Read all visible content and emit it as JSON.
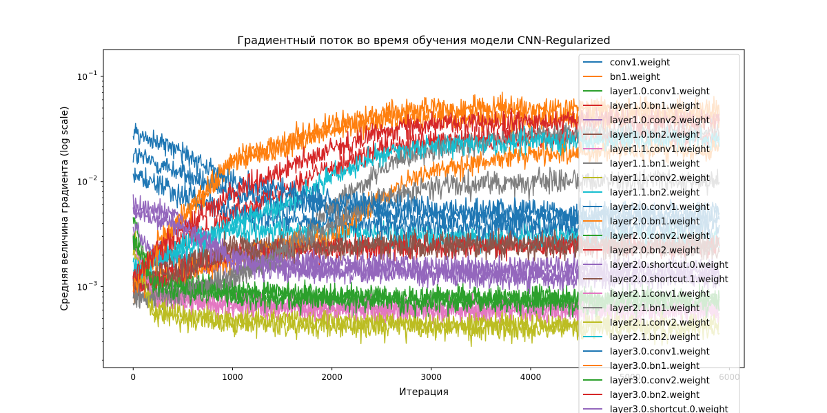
{
  "chart_data": {
    "type": "line",
    "title": "Градиентный поток во время обучения модели CNN-Regularized",
    "xlabel": "Итерация",
    "ylabel": "Средняя величина градиента (log scale)",
    "xlim": [
      -300,
      6150
    ],
    "ylim": [
      0.00017,
      0.18
    ],
    "y_scale": "log",
    "x_ticks": [
      0,
      1000,
      2000,
      3000,
      4000,
      5000,
      6000
    ],
    "x_tick_labels": [
      "0",
      "1000",
      "2000",
      "3000",
      "4000",
      "5000",
      "6000"
    ],
    "y_ticks": [
      0.001,
      0.01,
      0.1
    ],
    "y_tick_labels": [
      "10",
      "10",
      "10"
    ],
    "y_tick_exponents": [
      "−3",
      "−2",
      "−1"
    ],
    "x_max": 5900,
    "grid": false,
    "legend_position": "top-right",
    "series": [
      {
        "name": "conv1.weight",
        "color": "#1f77b4",
        "values": [
          [
            0,
            0.018
          ],
          [
            400,
            0.013
          ],
          [
            1000,
            0.0075
          ],
          [
            2000,
            0.0055
          ],
          [
            3000,
            0.0048
          ],
          [
            4000,
            0.0046
          ],
          [
            5000,
            0.0045
          ],
          [
            5900,
            0.0045
          ]
        ]
      },
      {
        "name": "bn1.weight",
        "color": "#ff7f0e",
        "values": [
          [
            0,
            0.0011
          ],
          [
            300,
            0.003
          ],
          [
            1000,
            0.015
          ],
          [
            2000,
            0.03
          ],
          [
            2500,
            0.038
          ],
          [
            3000,
            0.04
          ],
          [
            4000,
            0.04
          ],
          [
            5000,
            0.04
          ],
          [
            5900,
            0.04
          ]
        ]
      },
      {
        "name": "layer1.0.conv1.weight",
        "color": "#2ca02c",
        "values": [
          [
            0,
            0.004
          ],
          [
            200,
            0.0012
          ],
          [
            1000,
            0.0009
          ],
          [
            2000,
            0.0008
          ],
          [
            3000,
            0.00075
          ],
          [
            4000,
            0.00075
          ],
          [
            5000,
            0.00075
          ],
          [
            5900,
            0.00075
          ]
        ]
      },
      {
        "name": "layer1.0.bn1.weight",
        "color": "#d62728",
        "values": [
          [
            0,
            0.0013
          ],
          [
            300,
            0.002
          ],
          [
            1000,
            0.005
          ],
          [
            2000,
            0.014
          ],
          [
            2500,
            0.02
          ],
          [
            3000,
            0.024
          ],
          [
            4000,
            0.026
          ],
          [
            5000,
            0.027
          ],
          [
            5900,
            0.027
          ]
        ]
      },
      {
        "name": "layer1.0.conv2.weight",
        "color": "#9467bd",
        "values": [
          [
            0,
            0.004
          ],
          [
            200,
            0.002
          ],
          [
            1000,
            0.0015
          ],
          [
            2000,
            0.0014
          ],
          [
            3000,
            0.0014
          ],
          [
            4000,
            0.0013
          ],
          [
            5000,
            0.0013
          ],
          [
            5900,
            0.0013
          ]
        ]
      },
      {
        "name": "layer1.0.bn2.weight",
        "color": "#8c564b",
        "values": [
          [
            0,
            0.001
          ],
          [
            300,
            0.0015
          ],
          [
            1000,
            0.0025
          ],
          [
            2000,
            0.0025
          ],
          [
            3000,
            0.0025
          ],
          [
            4000,
            0.0024
          ],
          [
            5000,
            0.0024
          ],
          [
            5900,
            0.0024
          ]
        ]
      },
      {
        "name": "layer1.1.conv1.weight",
        "color": "#e377c2",
        "values": [
          [
            0,
            0.003
          ],
          [
            200,
            0.0009
          ],
          [
            1000,
            0.00065
          ],
          [
            2000,
            0.00065
          ],
          [
            3000,
            0.00062
          ],
          [
            4000,
            0.0006
          ],
          [
            5000,
            0.0006
          ],
          [
            5900,
            0.0006
          ]
        ]
      },
      {
        "name": "layer1.1.bn1.weight",
        "color": "#7f7f7f",
        "values": [
          [
            0,
            0.0008
          ],
          [
            300,
            0.0008
          ],
          [
            1000,
            0.0012
          ],
          [
            1500,
            0.002
          ],
          [
            2000,
            0.006
          ],
          [
            2500,
            0.013
          ],
          [
            3000,
            0.02
          ],
          [
            4000,
            0.028
          ],
          [
            5000,
            0.03
          ],
          [
            5900,
            0.03
          ]
        ]
      },
      {
        "name": "layer1.1.conv2.weight",
        "color": "#bcbd22",
        "values": [
          [
            0,
            0.003
          ],
          [
            200,
            0.0006
          ],
          [
            1000,
            0.0005
          ],
          [
            2000,
            0.00048
          ],
          [
            3000,
            0.00045
          ],
          [
            4000,
            0.00045
          ],
          [
            5000,
            0.00045
          ],
          [
            5900,
            0.00045
          ]
        ]
      },
      {
        "name": "layer1.1.bn2.weight",
        "color": "#17becf",
        "values": [
          [
            0,
            0.0015
          ],
          [
            300,
            0.0018
          ],
          [
            1000,
            0.0035
          ],
          [
            2000,
            0.0033
          ],
          [
            3000,
            0.003
          ],
          [
            4000,
            0.003
          ],
          [
            5000,
            0.003
          ],
          [
            5900,
            0.003
          ]
        ]
      },
      {
        "name": "layer2.0.conv1.weight",
        "color": "#1f77b4",
        "values": [
          [
            0,
            0.012
          ],
          [
            400,
            0.008
          ],
          [
            1000,
            0.005
          ],
          [
            2000,
            0.004
          ],
          [
            3000,
            0.0038
          ],
          [
            4000,
            0.0037
          ],
          [
            5000,
            0.0036
          ],
          [
            5900,
            0.0036
          ]
        ]
      },
      {
        "name": "layer2.0.bn1.weight",
        "color": "#ff7f0e",
        "values": [
          [
            0,
            0.001
          ],
          [
            300,
            0.0012
          ],
          [
            1000,
            0.0018
          ],
          [
            2000,
            0.003
          ],
          [
            2500,
            0.007
          ],
          [
            3000,
            0.013
          ],
          [
            4000,
            0.018
          ],
          [
            5000,
            0.02
          ],
          [
            5900,
            0.02
          ]
        ]
      },
      {
        "name": "layer2.0.conv2.weight",
        "color": "#2ca02c",
        "values": [
          [
            0,
            0.0025
          ],
          [
            200,
            0.0011
          ],
          [
            1000,
            0.0009
          ],
          [
            2000,
            0.0008
          ],
          [
            3000,
            0.00078
          ],
          [
            4000,
            0.00076
          ],
          [
            5000,
            0.00075
          ],
          [
            5900,
            0.00075
          ]
        ]
      },
      {
        "name": "layer2.0.bn2.weight",
        "color": "#d62728",
        "values": [
          [
            0,
            0.001
          ],
          [
            300,
            0.0012
          ],
          [
            1000,
            0.002
          ],
          [
            2000,
            0.0023
          ],
          [
            3000,
            0.0024
          ],
          [
            4000,
            0.0024
          ],
          [
            5000,
            0.0024
          ],
          [
            5900,
            0.0024
          ]
        ]
      },
      {
        "name": "layer2.0.shortcut.0.weight",
        "color": "#9467bd",
        "values": [
          [
            0,
            0.006
          ],
          [
            400,
            0.005
          ],
          [
            1000,
            0.002
          ],
          [
            2000,
            0.0017
          ],
          [
            3000,
            0.0016
          ],
          [
            4000,
            0.0015
          ],
          [
            5000,
            0.0015
          ],
          [
            5900,
            0.0015
          ]
        ]
      },
      {
        "name": "layer2.0.shortcut.1.weight",
        "color": "#8c564b",
        "values": [
          [
            0,
            0.001
          ],
          [
            300,
            0.0012
          ],
          [
            1000,
            0.0022
          ],
          [
            2000,
            0.0024
          ],
          [
            3000,
            0.0025
          ],
          [
            4000,
            0.0025
          ],
          [
            5000,
            0.0025
          ],
          [
            5900,
            0.0025
          ]
        ]
      },
      {
        "name": "layer2.1.conv1.weight",
        "color": "#e377c2",
        "values": [
          [
            0,
            0.0025
          ],
          [
            200,
            0.0008
          ],
          [
            1000,
            0.00065
          ],
          [
            2000,
            0.0006
          ],
          [
            3000,
            0.0006
          ],
          [
            4000,
            0.0006
          ],
          [
            5000,
            0.0006
          ],
          [
            5900,
            0.0006
          ]
        ]
      },
      {
        "name": "layer2.1.bn1.weight",
        "color": "#7f7f7f",
        "values": [
          [
            0,
            0.0008
          ],
          [
            300,
            0.0008
          ],
          [
            1000,
            0.0012
          ],
          [
            2000,
            0.004
          ],
          [
            2500,
            0.007
          ],
          [
            3000,
            0.009
          ],
          [
            4000,
            0.01
          ],
          [
            5000,
            0.01
          ],
          [
            5900,
            0.01
          ]
        ]
      },
      {
        "name": "layer2.1.conv2.weight",
        "color": "#bcbd22",
        "values": [
          [
            0,
            0.0025
          ],
          [
            200,
            0.00055
          ],
          [
            1000,
            0.00045
          ],
          [
            2000,
            0.00042
          ],
          [
            3000,
            0.0004
          ],
          [
            4000,
            0.0004
          ],
          [
            5000,
            0.0004
          ],
          [
            5900,
            0.0004
          ]
        ]
      },
      {
        "name": "layer2.1.bn2.weight",
        "color": "#17becf",
        "values": [
          [
            0,
            0.0015
          ],
          [
            300,
            0.002
          ],
          [
            1000,
            0.004
          ],
          [
            1500,
            0.006
          ],
          [
            2000,
            0.011
          ],
          [
            2500,
            0.018
          ],
          [
            3000,
            0.022
          ],
          [
            4000,
            0.024
          ],
          [
            5000,
            0.025
          ],
          [
            5900,
            0.025
          ]
        ]
      },
      {
        "name": "layer3.0.conv1.weight",
        "color": "#1f77b4",
        "values": [
          [
            0,
            0.03
          ],
          [
            400,
            0.022
          ],
          [
            1000,
            0.01
          ],
          [
            2000,
            0.0065
          ],
          [
            3000,
            0.0055
          ],
          [
            4000,
            0.0052
          ],
          [
            5000,
            0.005
          ],
          [
            5900,
            0.005
          ]
        ]
      },
      {
        "name": "layer3.0.bn1.weight",
        "color": "#ff7f0e",
        "values": [
          [
            0,
            0.001
          ],
          [
            300,
            0.0025
          ],
          [
            1000,
            0.016
          ],
          [
            2000,
            0.035
          ],
          [
            2500,
            0.045
          ],
          [
            3000,
            0.05
          ],
          [
            4000,
            0.05
          ],
          [
            5000,
            0.048
          ],
          [
            5900,
            0.048
          ]
        ]
      },
      {
        "name": "layer3.0.conv2.weight",
        "color": "#2ca02c",
        "values": [
          [
            0,
            0.003
          ],
          [
            200,
            0.001
          ],
          [
            1000,
            0.0008
          ],
          [
            2000,
            0.00075
          ],
          [
            3000,
            0.0007
          ],
          [
            4000,
            0.0007
          ],
          [
            5000,
            0.0007
          ],
          [
            5900,
            0.0007
          ]
        ]
      },
      {
        "name": "layer3.0.bn2.weight",
        "color": "#d62728",
        "values": [
          [
            0,
            0.0012
          ],
          [
            300,
            0.0025
          ],
          [
            1000,
            0.008
          ],
          [
            2000,
            0.02
          ],
          [
            2500,
            0.03
          ],
          [
            3000,
            0.035
          ],
          [
            4000,
            0.037
          ],
          [
            5000,
            0.038
          ],
          [
            5900,
            0.038
          ]
        ]
      },
      {
        "name": "layer3.0.shortcut.0.weight",
        "color": "#9467bd",
        "values": [
          [
            0,
            0.005
          ],
          [
            400,
            0.004
          ],
          [
            1000,
            0.0018
          ],
          [
            2000,
            0.0014
          ],
          [
            3000,
            0.0013
          ],
          [
            4000,
            0.0012
          ],
          [
            5000,
            0.0012
          ],
          [
            5900,
            0.0012
          ]
        ]
      }
    ]
  }
}
